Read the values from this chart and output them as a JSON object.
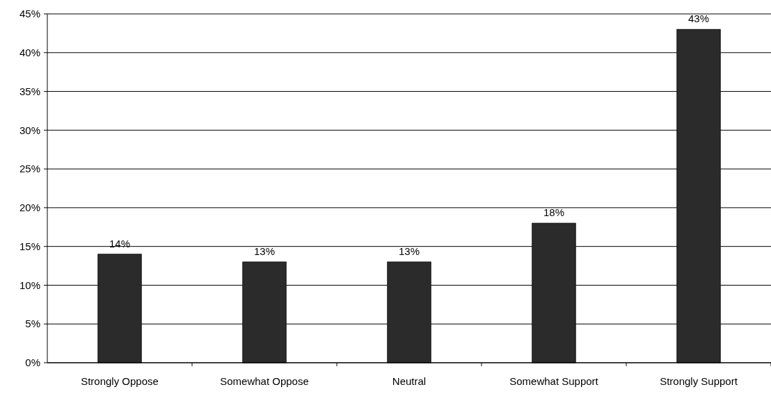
{
  "chart_data": {
    "type": "bar",
    "categories": [
      "Strongly Oppose",
      "Somewhat Oppose",
      "Neutral",
      "Somewhat Support",
      "Strongly Support"
    ],
    "values": [
      14,
      13,
      13,
      18,
      43
    ],
    "value_labels": [
      "14%",
      "13%",
      "13%",
      "18%",
      "43%"
    ],
    "color": "#2b2b2b",
    "ylim": [
      0,
      45
    ],
    "yticks": [
      {
        "value": 0,
        "label": "0%"
      },
      {
        "value": 5,
        "label": "5%"
      },
      {
        "value": 10,
        "label": "10%"
      },
      {
        "value": 15,
        "label": "15%"
      },
      {
        "value": 20,
        "label": "20%"
      },
      {
        "value": 25,
        "label": "25%"
      },
      {
        "value": 30,
        "label": "30%"
      },
      {
        "value": 35,
        "label": "35%"
      },
      {
        "value": 40,
        "label": "40%"
      },
      {
        "value": 45,
        "label": "45%"
      }
    ],
    "grid": "y"
  }
}
